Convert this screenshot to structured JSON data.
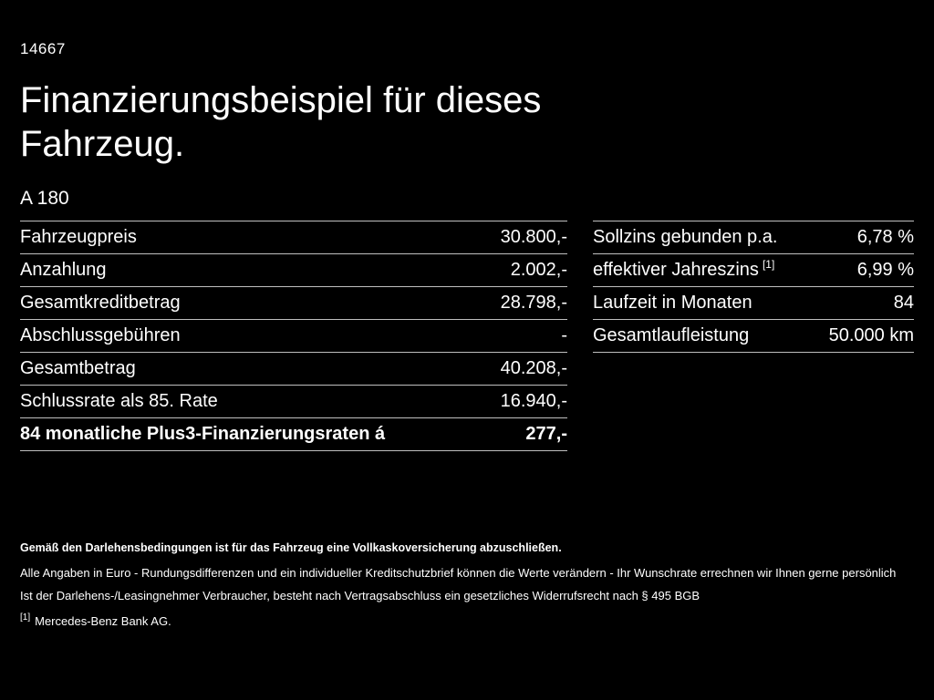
{
  "colors": {
    "background": "#000000",
    "text": "#ffffff",
    "divider": "#bfbfbf"
  },
  "page": {
    "id": "14667",
    "title_line1": "Finanzierungsbeispiel für dieses",
    "title_line2": "Fahrzeug.",
    "model": "A 180"
  },
  "left_table": {
    "rows": [
      {
        "label": "Fahrzeugpreis",
        "value": "30.800,-"
      },
      {
        "label": "Anzahlung",
        "value": "2.002,-"
      },
      {
        "label": "Gesamtkreditbetrag",
        "value": "28.798,-"
      },
      {
        "label": "Abschlussgebühren",
        "value": "-"
      },
      {
        "label": "Gesamtbetrag",
        "value": "40.208,-"
      },
      {
        "label": "Schlussrate als 85. Rate",
        "value": "16.940,-"
      },
      {
        "label": "84 monatliche Plus3-Finanzierungsraten á",
        "value": "277,-"
      }
    ]
  },
  "right_table": {
    "rows": [
      {
        "label": "Sollzins gebunden p.a.",
        "value": "6,78 %"
      },
      {
        "label": "effektiver Jahreszins",
        "sup": "[1]",
        "value": "6,99 %"
      },
      {
        "label": "Laufzeit in Monaten",
        "value": "84"
      },
      {
        "label": "Gesamtlaufleistung",
        "value": "50.000 km"
      }
    ]
  },
  "footer": {
    "line1": "Gemäß den Darlehensbedingungen ist für das Fahrzeug eine Vollkaskoversicherung abzuschließen.",
    "line2": "Alle Angaben in Euro - Rundungsdifferenzen und ein individueller Kreditschutzbrief können die Werte verändern - Ihr Wunschrate errechnen wir Ihnen gerne persönlich",
    "line3": "Ist der Darlehens-/Leasingnehmer Verbraucher, besteht nach Vertragsabschluss ein gesetzliches Widerrufsrecht nach § 495 BGB",
    "line4_sup": "[1]",
    "line4": "Mercedes-Benz Bank AG."
  }
}
